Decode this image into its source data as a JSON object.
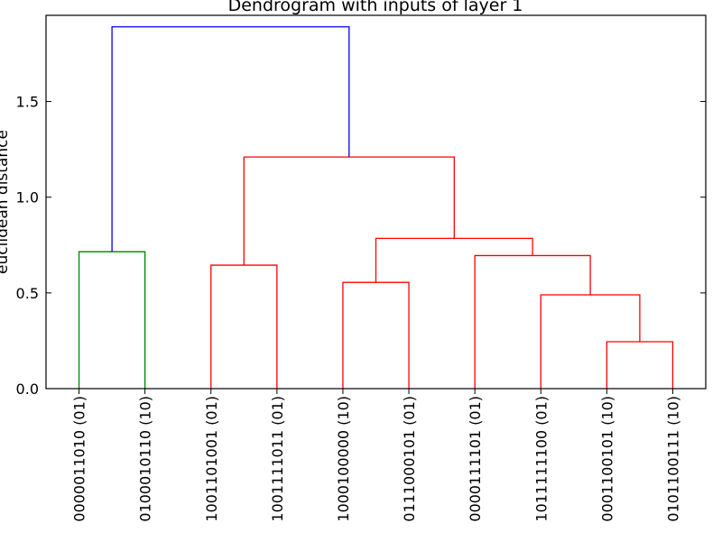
{
  "chart_data": {
    "type": "dendrogram",
    "title": "Dendrogram with inputs of layer 1",
    "xlabel": "",
    "ylabel": "euclidean distance",
    "ylim": [
      0,
      1.95
    ],
    "yticks": [
      0.0,
      0.5,
      1.0,
      1.5
    ],
    "ytick_labels": [
      "0.0",
      "0.5",
      "1.0",
      "1.5"
    ],
    "grid": false,
    "leaves": [
      "0000011010 (01)",
      "0100010110 (10)",
      "1001101001 (01)",
      "1001111011 (01)",
      "1000100000 (10)",
      "0111000101 (01)",
      "0000111101 (01)",
      "1011111100 (01)",
      "0001100101 (10)",
      "0101100111 (10)"
    ],
    "links": [
      {
        "left": "leaf:8",
        "right": "leaf:9",
        "height": 0.245,
        "color": "#ff0000"
      },
      {
        "left": "leaf:7",
        "right": "node:0",
        "height": 0.49,
        "color": "#ff0000"
      },
      {
        "left": "leaf:4",
        "right": "leaf:5",
        "height": 0.555,
        "color": "#ff0000"
      },
      {
        "left": "leaf:2",
        "right": "leaf:3",
        "height": 0.645,
        "color": "#ff0000"
      },
      {
        "left": "leaf:6",
        "right": "node:1",
        "height": 0.695,
        "color": "#ff0000"
      },
      {
        "left": "leaf:0",
        "right": "leaf:1",
        "height": 0.715,
        "color": "#008000"
      },
      {
        "left": "node:2",
        "right": "node:4",
        "height": 0.785,
        "color": "#ff0000"
      },
      {
        "left": "node:3",
        "right": "node:6",
        "height": 1.21,
        "color": "#ff0000"
      },
      {
        "left": "node:5",
        "right": "node:7",
        "height": 1.89,
        "color": "#0000ff"
      }
    ]
  }
}
